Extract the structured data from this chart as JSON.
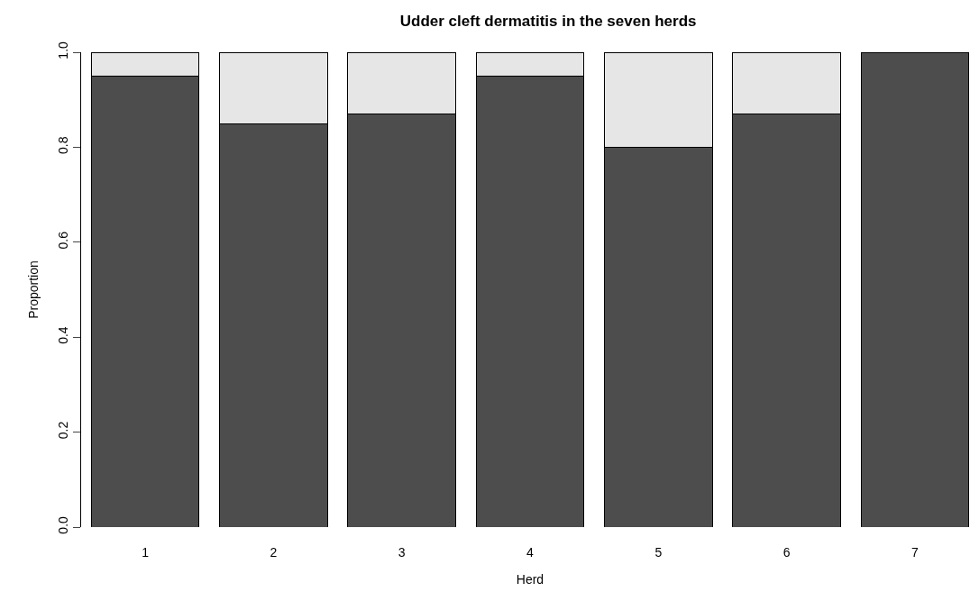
{
  "chart_data": {
    "type": "bar",
    "title": "Udder cleft dermatitis in the seven herds",
    "xlabel": "Herd",
    "ylabel": "Proportion",
    "categories": [
      "1",
      "2",
      "3",
      "4",
      "5",
      "6",
      "7"
    ],
    "stacked": true,
    "series": [
      {
        "color": "#4d4d4d",
        "values": [
          0.95,
          0.85,
          0.87,
          0.95,
          0.8,
          0.87,
          1.0
        ]
      },
      {
        "color": "#e6e6e6",
        "values": [
          0.05,
          0.15,
          0.13,
          0.05,
          0.2,
          0.13,
          0
        ]
      }
    ],
    "ylim": [
      0,
      1
    ],
    "yticks": [
      {
        "value": 0,
        "label": "0.0"
      },
      {
        "value": 0.2,
        "label": "0.2"
      },
      {
        "value": 0.4,
        "label": "0.4"
      },
      {
        "value": 0.6,
        "label": "0.6"
      },
      {
        "value": 0.8,
        "label": "0.8"
      },
      {
        "value": 1,
        "label": "1.0"
      }
    ],
    "grid": false
  }
}
